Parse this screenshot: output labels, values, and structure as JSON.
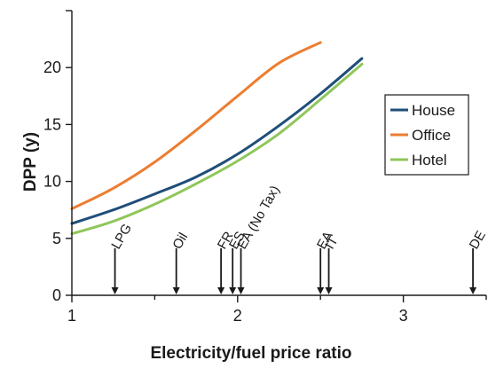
{
  "chart_data": {
    "type": "line",
    "title": "",
    "xlabel": "Electricity/fuel price ratio",
    "ylabel": "DPP (y)",
    "xlim": [
      1,
      3.5
    ],
    "ylim": [
      0,
      25
    ],
    "xticks": [
      1,
      2,
      3
    ],
    "yticks": [
      0,
      5,
      10,
      15,
      20
    ],
    "grid": false,
    "legend_position": "right",
    "series": [
      {
        "name": "House",
        "color": "#1f4e79",
        "x": [
          1.0,
          1.25,
          1.5,
          1.75,
          2.0,
          2.25,
          2.5,
          2.75
        ],
        "y": [
          6.3,
          7.5,
          8.9,
          10.4,
          12.4,
          14.9,
          17.7,
          20.8
        ]
      },
      {
        "name": "Office",
        "color": "#ed7d31",
        "x": [
          1.0,
          1.25,
          1.5,
          1.75,
          2.0,
          2.25,
          2.5
        ],
        "y": [
          7.6,
          9.4,
          11.7,
          14.5,
          17.5,
          20.4,
          22.2
        ]
      },
      {
        "name": "Hotel",
        "color": "#8fc65a",
        "x": [
          1.0,
          1.25,
          1.5,
          1.75,
          2.0,
          2.25,
          2.5,
          2.75
        ],
        "y": [
          5.4,
          6.5,
          8.0,
          9.8,
          11.8,
          14.2,
          17.2,
          20.3
        ]
      }
    ],
    "annotations": [
      {
        "label": "LPG",
        "x": 1.26
      },
      {
        "label": "Oil",
        "x": 1.63
      },
      {
        "label": "FR",
        "x": 1.9
      },
      {
        "label": "ES",
        "x": 1.97
      },
      {
        "label": "EA (No Tax)",
        "x": 2.02
      },
      {
        "label": "EA",
        "x": 2.5
      },
      {
        "label": "IT",
        "x": 2.55
      },
      {
        "label": "DE",
        "x": 3.42
      }
    ]
  }
}
